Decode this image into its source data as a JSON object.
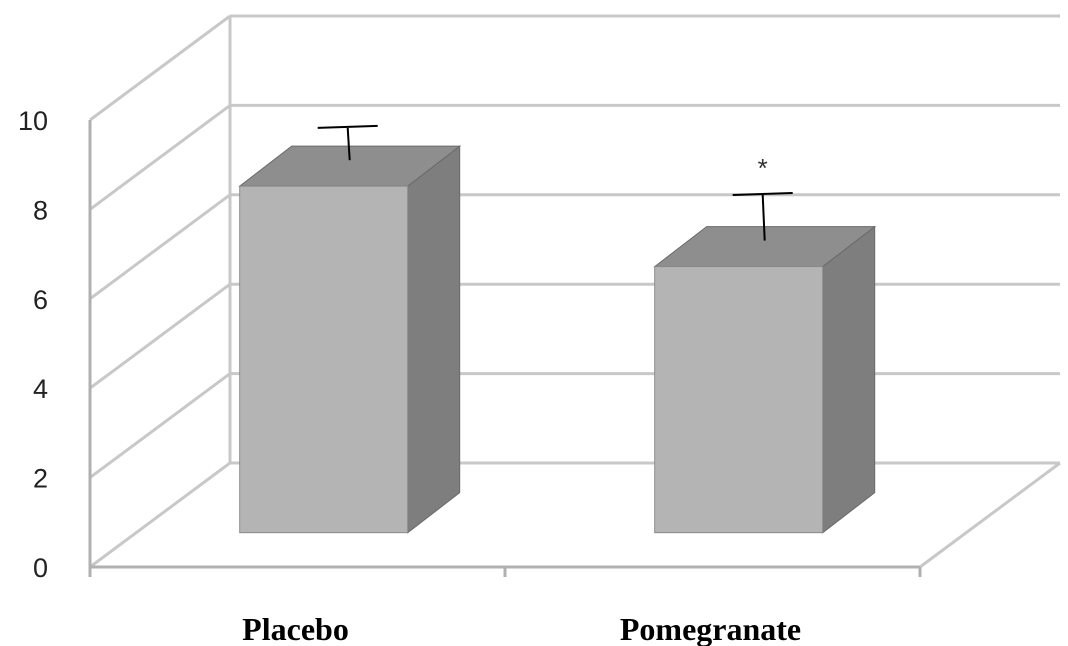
{
  "chart_data": {
    "type": "bar",
    "style": "3d",
    "categories": [
      "Placebo",
      "Pomegranate"
    ],
    "values": [
      8.2,
      6.4
    ],
    "error": [
      0.9,
      1.2
    ],
    "annotations": [
      "",
      "*"
    ],
    "title": "",
    "xlabel": "",
    "ylabel": "",
    "ylim": [
      0,
      10
    ],
    "yticks": [
      "0",
      "2",
      "4",
      "6",
      "8",
      "10"
    ],
    "grid": true,
    "colors": {
      "front": "#b4b4b4",
      "side": "#7e7e7e",
      "top": "#8e8e8e",
      "grid": "#c8c8c8"
    }
  }
}
